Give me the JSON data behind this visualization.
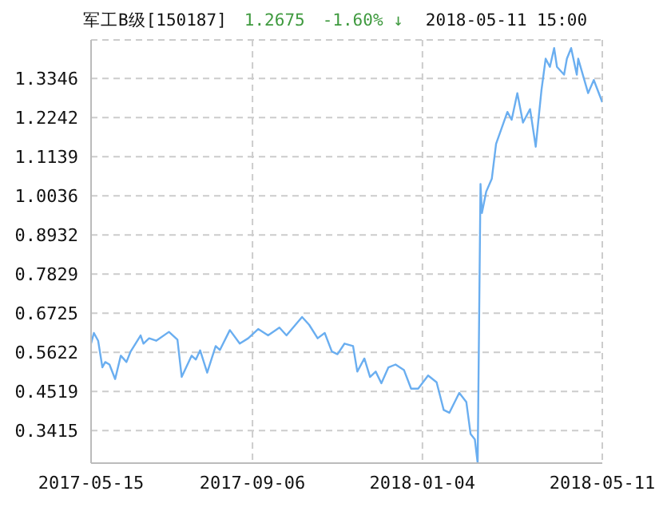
{
  "chart_data": {
    "type": "line",
    "title": "军工B级[150187]",
    "annotations": [
      "1.2675",
      "-1.60% ↓",
      "2018-05-11 15:00"
    ],
    "x": [
      "2017-05-15",
      "2017-05-17",
      "2017-05-20",
      "2017-05-23",
      "2017-05-25",
      "2017-05-28",
      "2017-06-01",
      "2017-06-05",
      "2017-06-09",
      "2017-06-12",
      "2017-06-19",
      "2017-06-21",
      "2017-06-25",
      "2017-06-30",
      "2017-07-09",
      "2017-07-15",
      "2017-07-18",
      "2017-07-25",
      "2017-07-28",
      "2017-07-31",
      "2017-08-05",
      "2017-08-11",
      "2017-08-14",
      "2017-08-21",
      "2017-08-28",
      "2017-09-03",
      "2017-09-10",
      "2017-09-17",
      "2017-09-25",
      "2017-09-30",
      "2017-10-11",
      "2017-10-16",
      "2017-10-22",
      "2017-10-27",
      "2017-11-01",
      "2017-11-05",
      "2017-11-10",
      "2017-11-16",
      "2017-11-19",
      "2017-11-24",
      "2017-11-28",
      "2017-12-02",
      "2017-12-06",
      "2017-12-11",
      "2017-12-16",
      "2017-12-22",
      "2017-12-27",
      "2018-01-01",
      "2018-01-08",
      "2018-01-14",
      "2018-01-19",
      "2018-01-23",
      "2018-01-30",
      "2018-02-04",
      "2018-02-07",
      "2018-02-10",
      "2018-02-12",
      "2018-02-14",
      "2018-02-15",
      "2018-02-18",
      "2018-02-22",
      "2018-02-25",
      "2018-03-01",
      "2018-03-05",
      "2018-03-08",
      "2018-03-12",
      "2018-03-16",
      "2018-03-21",
      "2018-03-25",
      "2018-03-29",
      "2018-04-01",
      "2018-04-04",
      "2018-04-07",
      "2018-04-09",
      "2018-04-14",
      "2018-04-16",
      "2018-04-19",
      "2018-04-23",
      "2018-04-24",
      "2018-05-01",
      "2018-05-05",
      "2018-05-11"
    ],
    "series": [
      {
        "color": "#6aaef0",
        "values": [
          0.587,
          0.617,
          0.595,
          0.52,
          0.535,
          0.528,
          0.487,
          0.553,
          0.535,
          0.565,
          0.61,
          0.587,
          0.602,
          0.595,
          0.62,
          0.598,
          0.493,
          0.553,
          0.542,
          0.568,
          0.505,
          0.58,
          0.569,
          0.625,
          0.587,
          0.602,
          0.628,
          0.61,
          0.632,
          0.61,
          0.662,
          0.64,
          0.602,
          0.617,
          0.565,
          0.557,
          0.587,
          0.58,
          0.508,
          0.545,
          0.493,
          0.508,
          0.475,
          0.52,
          0.528,
          0.512,
          0.46,
          0.46,
          0.497,
          0.478,
          0.4,
          0.392,
          0.448,
          0.422,
          0.332,
          0.317,
          0.25,
          1.037,
          0.955,
          1.015,
          1.052,
          1.15,
          1.195,
          1.24,
          1.218,
          1.293,
          1.21,
          1.248,
          1.142,
          1.3,
          1.39,
          1.367,
          1.42,
          1.367,
          1.345,
          1.39,
          1.42,
          1.345,
          1.39,
          1.293,
          1.33,
          1.2675
        ]
      }
    ],
    "xlim": [
      "2017-05-15",
      "2018-05-11"
    ],
    "xticks": [
      "2017-05-15",
      "2017-09-06",
      "2018-01-04",
      "2018-05-11"
    ],
    "ylim": [
      0.25,
      1.443
    ],
    "yticks": [
      0.3415,
      0.4519,
      0.5622,
      0.6725,
      0.7829,
      0.8932,
      1.0036,
      1.1139,
      1.2242,
      1.3346
    ],
    "grid": true,
    "marker": "none",
    "line_style": "solid"
  }
}
